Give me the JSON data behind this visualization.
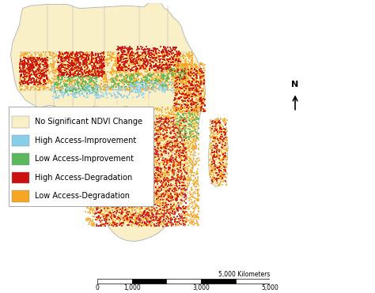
{
  "legend_items": [
    {
      "label": "Low Access-Degradation",
      "color": "#F5A623"
    },
    {
      "label": "High Access-Degradation",
      "color": "#CC1111"
    },
    {
      "label": "Low Access-Improvement",
      "color": "#5CB85C"
    },
    {
      "label": "High Access-Improvement",
      "color": "#87CEEB"
    },
    {
      "label": "No Significant NDVI Change",
      "color": "#FAF0C8"
    }
  ],
  "background_color": "#FFFFFF",
  "map_bg": "#FAF0C8",
  "border_color": "#B0B0B0",
  "figsize": [
    4.74,
    3.71
  ],
  "dpi": 100,
  "scale_label": "5,000 Kilometers",
  "scale_ticks": [
    0,
    1000,
    3000,
    5000
  ]
}
